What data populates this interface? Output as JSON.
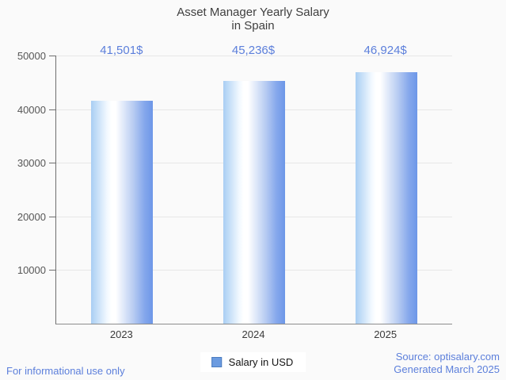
{
  "title_lines": [
    "Asset Manager Yearly Salary",
    "in Spain"
  ],
  "chart_data": {
    "type": "bar",
    "title": "Asset Manager Yearly Salary in Spain",
    "categories": [
      "2023",
      "2024",
      "2025"
    ],
    "values": [
      41501,
      45236,
      46924
    ],
    "value_labels": [
      "41,501$",
      "45,236$",
      "46,924$"
    ],
    "series_name": "Salary in USD",
    "xlabel": "",
    "ylabel": "",
    "ylim": [
      0,
      50000
    ],
    "yticks": [
      10000,
      20000,
      30000,
      40000,
      50000
    ],
    "grid": true,
    "legend_position": "bottom",
    "colors": {
      "bar_gradient_left": "#a9cef3",
      "bar_gradient_mid": "#ffffff",
      "bar_gradient_right": "#6d97e8",
      "value_label_blue": "#5c7fdb",
      "background": "#fafafa",
      "gridline": "#e7e7e7",
      "axis": "#6f6f6f"
    }
  },
  "legend": {
    "label": "Salary in USD",
    "swatch_color": "#6b9be0"
  },
  "footer": {
    "left": "For informational use only",
    "source": "Source: optisalary.com",
    "generated": "Generated March 2025"
  }
}
